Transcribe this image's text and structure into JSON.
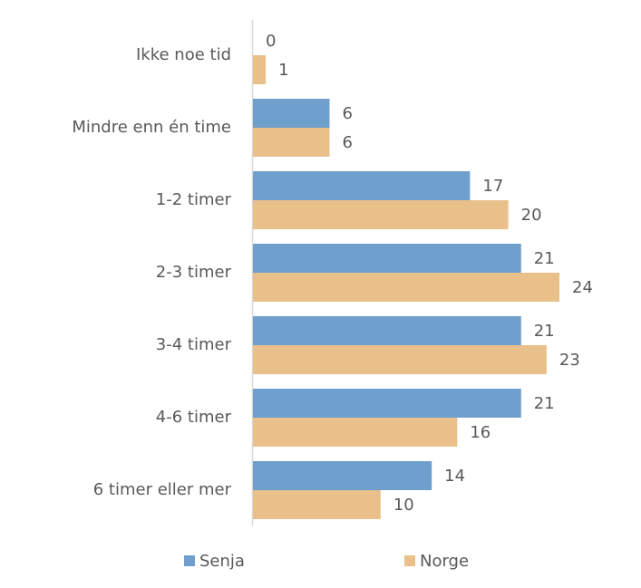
{
  "chart_data": {
    "type": "bar",
    "orientation": "horizontal",
    "categories": [
      "Ikke noe tid",
      "Mindre enn én time",
      "1-2 timer",
      "2-3 timer",
      "3-4 timer",
      "4-6 timer",
      "6 timer eller mer"
    ],
    "series": [
      {
        "name": "Senja",
        "color": "#6f9fcd",
        "values": [
          0,
          6,
          17,
          21,
          21,
          21,
          14
        ]
      },
      {
        "name": "Norge",
        "color": "#e9c08a",
        "values": [
          1,
          6,
          20,
          24,
          23,
          16,
          10
        ]
      }
    ],
    "legend": "bottom"
  }
}
